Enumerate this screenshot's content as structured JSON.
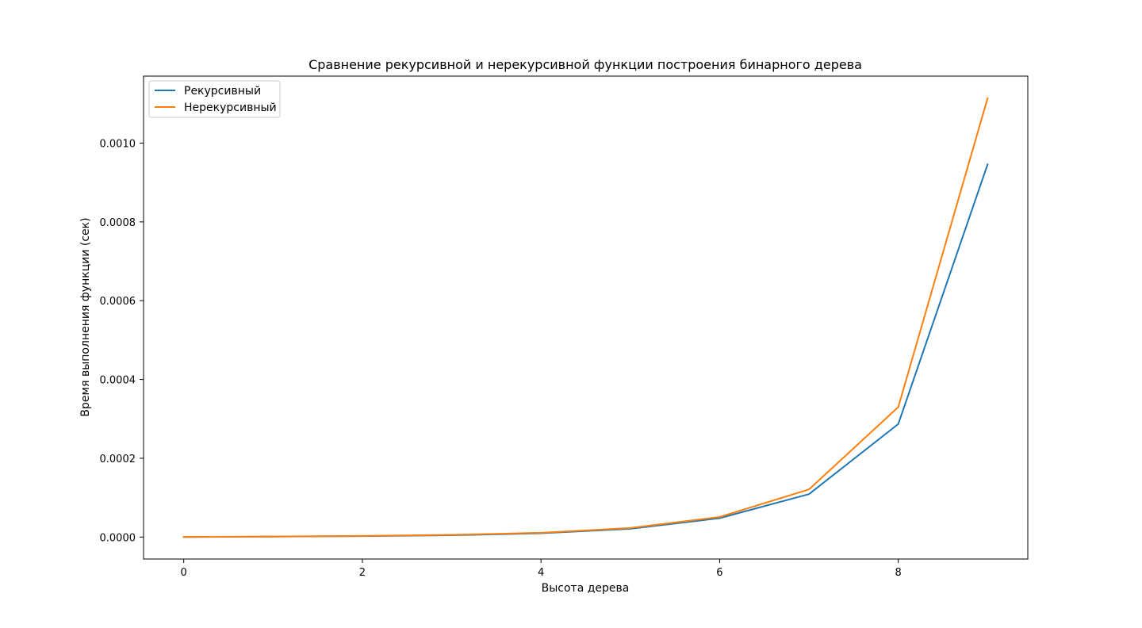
{
  "chart_data": {
    "type": "line",
    "title": "Сравнение рекурсивной и нерекурсивной функции построения бинарного дерева",
    "xlabel": "Высота дерева",
    "ylabel": "Время выполнения функции (сек)",
    "x": [
      0,
      1,
      2,
      3,
      4,
      5,
      6,
      7,
      8,
      9
    ],
    "xlim": [
      -0.45,
      9.45
    ],
    "ylim": [
      -5.57e-05,
      0.00117
    ],
    "xticks": [
      0,
      2,
      4,
      6,
      8
    ],
    "xtick_labels": [
      "0",
      "2",
      "4",
      "6",
      "8"
    ],
    "yticks": [
      0,
      0.0002,
      0.0004,
      0.0006,
      0.0008,
      0.001
    ],
    "ytick_labels": [
      "0.0000",
      "0.0002",
      "0.0004",
      "0.0006",
      "0.0008",
      "0.0010"
    ],
    "grid": false,
    "legend_position": "upper left",
    "series": [
      {
        "name": "Рекурсивный",
        "color": "#1f77b4",
        "values": [
          1e-07,
          1.2e-06,
          2.4e-06,
          4.6e-06,
          9.6e-06,
          2.1e-05,
          4.8e-05,
          0.000109,
          0.000287,
          0.000946
        ]
      },
      {
        "name": "Нерекурсивный",
        "color": "#ff7f0e",
        "values": [
          1e-07,
          1.4e-06,
          2.8e-06,
          5.7e-06,
          1.1e-05,
          2.3e-05,
          5.1e-05,
          0.000121,
          0.00033,
          0.001114
        ]
      }
    ]
  }
}
